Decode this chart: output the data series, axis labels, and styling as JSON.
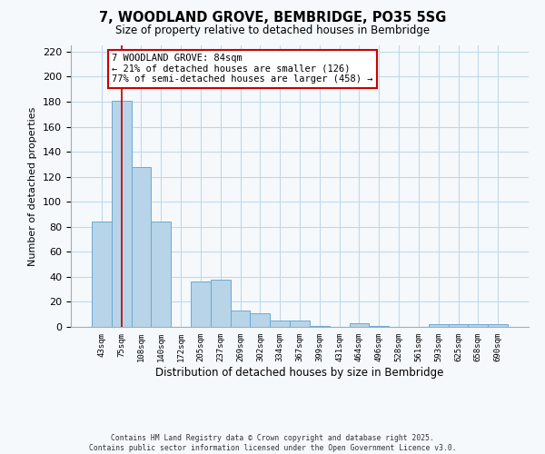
{
  "title": "7, WOODLAND GROVE, BEMBRIDGE, PO35 5SG",
  "subtitle": "Size of property relative to detached houses in Bembridge",
  "bar_labels": [
    "43sqm",
    "75sqm",
    "108sqm",
    "140sqm",
    "172sqm",
    "205sqm",
    "237sqm",
    "269sqm",
    "302sqm",
    "334sqm",
    "367sqm",
    "399sqm",
    "431sqm",
    "464sqm",
    "496sqm",
    "528sqm",
    "561sqm",
    "593sqm",
    "625sqm",
    "658sqm",
    "690sqm"
  ],
  "bar_values": [
    84,
    181,
    128,
    84,
    0,
    36,
    38,
    13,
    11,
    5,
    5,
    1,
    0,
    3,
    1,
    0,
    0,
    2,
    2,
    2,
    2
  ],
  "bar_color": "#b8d4e8",
  "bar_edge_color": "#6aaad4",
  "vline_x": 1,
  "vline_color": "#bb0000",
  "ylabel": "Number of detached properties",
  "xlabel": "Distribution of detached houses by size in Bembridge",
  "ylim": [
    0,
    225
  ],
  "yticks": [
    0,
    20,
    40,
    60,
    80,
    100,
    120,
    140,
    160,
    180,
    200,
    220
  ],
  "annotation_title": "7 WOODLAND GROVE: 84sqm",
  "annotation_line1": "← 21% of detached houses are smaller (126)",
  "annotation_line2": "77% of semi-detached houses are larger (458) →",
  "annotation_box_facecolor": "#ffffff",
  "annotation_box_edgecolor": "#cc0000",
  "footer_line1": "Contains HM Land Registry data © Crown copyright and database right 2025.",
  "footer_line2": "Contains public sector information licensed under the Open Government Licence v3.0.",
  "background_color": "#f5f9fc",
  "grid_color": "#c0d8ea"
}
